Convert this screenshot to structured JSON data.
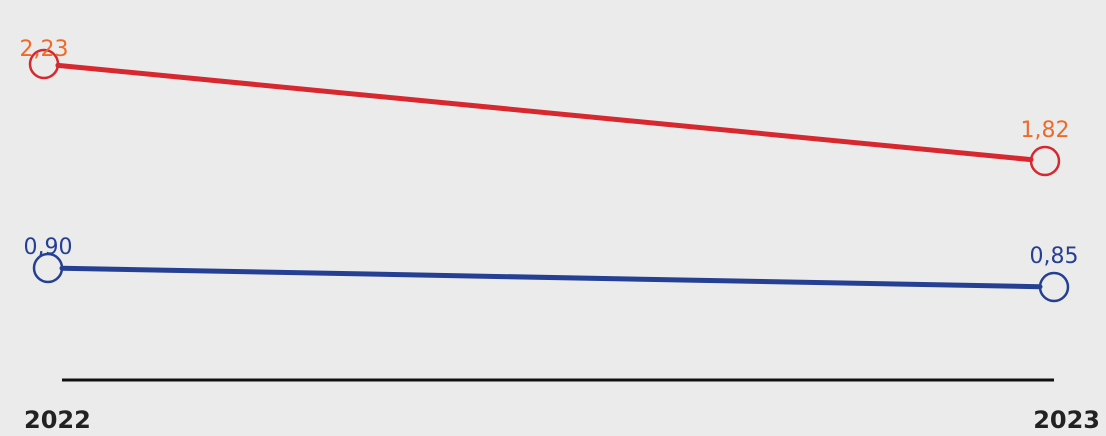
{
  "chart_data": {
    "type": "line",
    "categories": [
      "2022",
      "2023"
    ],
    "series": [
      {
        "values": [
          2.23,
          1.82
        ],
        "labels": [
          "2,23",
          "1,82"
        ],
        "color": "#d7282f",
        "label_color": "#ee6a2a"
      },
      {
        "values": [
          0.9,
          0.85
        ],
        "labels": [
          "0,90",
          "0,85"
        ],
        "color": "#253f92",
        "label_color": "#253f92"
      }
    ],
    "background": "#ebebeb",
    "axis_color": "#111111",
    "grid": false,
    "legend": "none"
  }
}
